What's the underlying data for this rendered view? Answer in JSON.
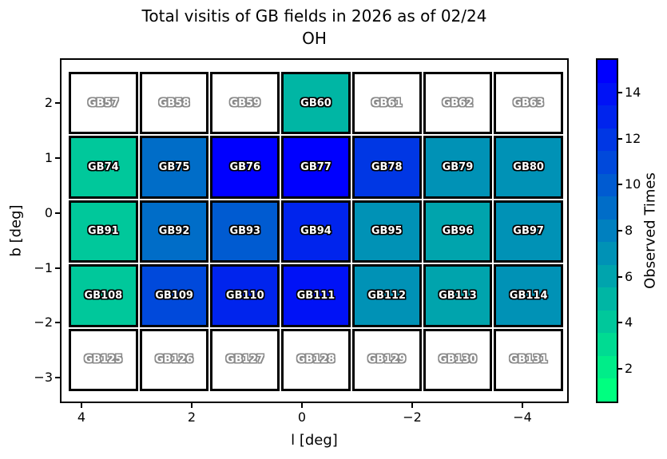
{
  "title": {
    "line1": "Total visitis of GB fields in 2026 as of 02/24",
    "line2": "OH"
  },
  "x_axis": {
    "label": "l [deg]",
    "ticks": [
      "4",
      "2",
      "0",
      "−2",
      "−4"
    ]
  },
  "y_axis": {
    "label": "b [deg]",
    "ticks": [
      "2",
      "1",
      "0",
      "−1",
      "−2",
      "−3"
    ]
  },
  "colorbar": {
    "label": "Observed Times",
    "ticks": [
      "2",
      "4",
      "6",
      "8",
      "10",
      "12",
      "14"
    ],
    "vmin": 1,
    "vmax": 15,
    "n_bands": 15,
    "colormap": "winter_r",
    "color_low": "#00ff80",
    "color_high": "#0000ff",
    "unobserved_color": "#ffffff"
  },
  "chart_data": {
    "type": "heatmap",
    "title": "Total visitis of GB fields in 2026 as of 02/24 OH",
    "xlabel": "l [deg]",
    "ylabel": "b [deg]",
    "x_tick_values": [
      4,
      2,
      0,
      -2,
      -4
    ],
    "y_tick_values": [
      2,
      1,
      0,
      -1,
      -2,
      -3
    ],
    "value_meaning": "observed times per field; white cell = 0 (not observed)",
    "rows": [
      {
        "fields": [
          "GB57",
          "GB58",
          "GB59",
          "GB60",
          "GB61",
          "GB62",
          "GB63"
        ],
        "values": [
          0,
          0,
          0,
          5,
          0,
          0,
          0
        ]
      },
      {
        "fields": [
          "GB74",
          "GB75",
          "GB76",
          "GB77",
          "GB78",
          "GB79",
          "GB80"
        ],
        "values": [
          4,
          9,
          15,
          15,
          12,
          7,
          7
        ]
      },
      {
        "fields": [
          "GB91",
          "GB92",
          "GB93",
          "GB94",
          "GB95",
          "GB96",
          "GB97"
        ],
        "values": [
          4,
          9,
          10,
          13,
          7,
          6,
          7
        ]
      },
      {
        "fields": [
          "GB108",
          "GB109",
          "GB110",
          "GB111",
          "GB112",
          "GB113",
          "GB114"
        ],
        "values": [
          4,
          11,
          13,
          14,
          7,
          6,
          7
        ]
      },
      {
        "fields": [
          "GB125",
          "GB126",
          "GB127",
          "GB128",
          "GB129",
          "GB130",
          "GB131"
        ],
        "values": [
          0,
          0,
          0,
          0,
          0,
          0,
          0
        ]
      }
    ]
  }
}
